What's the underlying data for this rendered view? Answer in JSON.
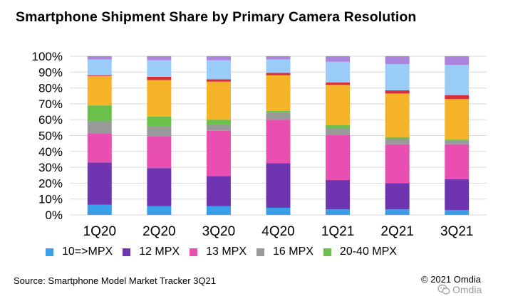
{
  "chart_data": {
    "type": "stacked-bar-100",
    "title": "Smartphone Shipment Share by Primary Camera Resolution",
    "categories": [
      "1Q20",
      "2Q20",
      "3Q20",
      "4Q20",
      "1Q21",
      "2Q21",
      "3Q21"
    ],
    "y_ticks": [
      "0%",
      "10%",
      "20%",
      "30%",
      "40%",
      "50%",
      "60%",
      "70%",
      "80%",
      "90%",
      "100%"
    ],
    "ylim": [
      0,
      100
    ],
    "grid": true,
    "series": [
      {
        "name": "10=>MPX",
        "color": "#3a9ee8",
        "values": [
          6.5,
          5.5,
          5.5,
          4.5,
          3.5,
          3.5,
          3.0
        ],
        "in_legend": true
      },
      {
        "name": "12 MPX",
        "color": "#6f35b0",
        "values": [
          26.5,
          24.0,
          19.0,
          28.0,
          18.5,
          16.5,
          19.5
        ],
        "in_legend": true
      },
      {
        "name": "13 MPX",
        "color": "#e84fb0",
        "values": [
          18.5,
          20.0,
          28.5,
          27.5,
          28.5,
          24.5,
          22.0
        ],
        "in_legend": true
      },
      {
        "name": "16 MPX",
        "color": "#999999",
        "values": [
          7.5,
          6.5,
          4.0,
          4.5,
          4.0,
          3.5,
          2.5
        ],
        "in_legend": true
      },
      {
        "name": "20-40 MPX",
        "color": "#6bc04b",
        "values": [
          10.0,
          6.0,
          3.0,
          1.0,
          2.0,
          1.0,
          0.5
        ],
        "in_legend": true
      },
      {
        "name": "",
        "color": "#f5b427",
        "values": [
          18.5,
          23.0,
          24.0,
          22.5,
          25.5,
          27.5,
          25.5
        ],
        "in_legend": false
      },
      {
        "name": "",
        "color": "#d42f3a",
        "values": [
          0.5,
          2.0,
          1.5,
          1.5,
          1.5,
          2.0,
          2.5
        ],
        "in_legend": false
      },
      {
        "name": "",
        "color": "#99ccf6",
        "values": [
          10.0,
          10.5,
          12.0,
          8.5,
          13.0,
          16.5,
          19.0
        ],
        "in_legend": false
      },
      {
        "name": "",
        "color": "#ad84dd",
        "values": [
          2.0,
          2.5,
          2.5,
          2.0,
          3.5,
          5.0,
          5.5
        ],
        "in_legend": false
      }
    ]
  },
  "footer": {
    "source": "Source: Smartphone Model Market Tracker 3Q21",
    "copyright": "© 2021 Omdia",
    "watermark": "Omdia",
    "watermark_icon": "wechat-icon"
  }
}
